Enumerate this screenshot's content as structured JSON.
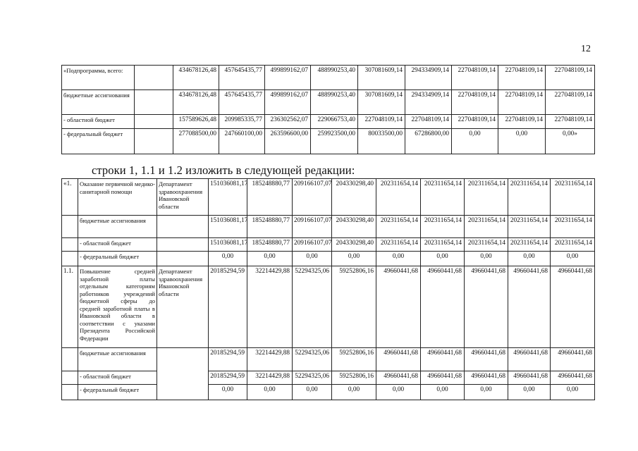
{
  "page_number": "12",
  "heading": "строки 1, 1.1 и 1.2 изложить в следующей редакции:",
  "table1": {
    "rows": [
      {
        "label": "«Подпрограмма, всего:",
        "values": [
          "434678126,48",
          "457645435,77",
          "499899162,07",
          "488990253,40",
          "307081609,14",
          "294334909,14",
          "227048109,14",
          "227048109,14",
          "227048109,14"
        ]
      },
      {
        "label": "бюджетные ассигнования",
        "values": [
          "434678126,48",
          "457645435,77",
          "499899162,07",
          "488990253,40",
          "307081609,14",
          "294334909,14",
          "227048109,14",
          "227048109,14",
          "227048109,14"
        ]
      },
      {
        "label": "- областной бюджет",
        "values": [
          "157589626,48",
          "209985335,77",
          "236302562,07",
          "229066753,40",
          "227048109,14",
          "227048109,14",
          "227048109,14",
          "227048109,14",
          "227048109,14"
        ]
      },
      {
        "label": "- федеральный бюджет",
        "values": [
          "277088500,00",
          "247660100,00",
          "263596600,00",
          "259923500,00",
          "80033500,00",
          "67286800,00",
          "0,00",
          "0,00",
          "0,00»"
        ]
      }
    ]
  },
  "table2": {
    "groups": [
      {
        "number": "«1.",
        "title": "Оказание первичной медико-санитарной помощи",
        "department": "Департамент здравоохранения Ивановской области",
        "values": [
          "151036081,17",
          "185248880,77",
          "209166107,07",
          "204330298,40",
          "202311654,14",
          "202311654,14",
          "202311654,14",
          "202311654,14",
          "202311654,14"
        ],
        "subrows": [
          {
            "label": "бюджетные ассигнования",
            "values": [
              "151036081,17",
              "185248880,77",
              "209166107,07",
              "204330298,40",
              "202311654,14",
              "202311654,14",
              "202311654,14",
              "202311654,14",
              "202311654,14"
            ]
          },
          {
            "label": "- областной бюджет",
            "values": [
              "151036081,17",
              "185248880,77",
              "209166107,07",
              "204330298,40",
              "202311654,14",
              "202311654,14",
              "202311654,14",
              "202311654,14",
              "202311654,14"
            ]
          },
          {
            "label": "- федеральный бюджет",
            "values": [
              "0,00",
              "0,00",
              "0,00",
              "0,00",
              "0,00",
              "0,00",
              "0,00",
              "0,00",
              "0,00"
            ]
          }
        ]
      },
      {
        "number": "1.1.",
        "title": "Повышение средней заработной платы отдельным категориям работников учреждений бюджетной сферы до средней заработной платы в Ивановской области в соответствии с указами Президента Российской Федерации",
        "department": "Департамент здравоохранения Ивановской области",
        "values": [
          "20185294,59",
          "32214429,88",
          "52294325,06",
          "59252806,16",
          "49660441,68",
          "49660441,68",
          "49660441,68",
          "49660441,68",
          "49660441,68"
        ],
        "subrows": [
          {
            "label": "бюджетные ассигнования",
            "values": [
              "20185294,59",
              "32214429,88",
              "52294325,06",
              "59252806,16",
              "49660441,68",
              "49660441,68",
              "49660441,68",
              "49660441,68",
              "49660441,68"
            ]
          },
          {
            "label": "- областной бюджет",
            "values": [
              "20185294,59",
              "32214429,88",
              "52294325,06",
              "59252806,16",
              "49660441,68",
              "49660441,68",
              "49660441,68",
              "49660441,68",
              "49660441,68"
            ]
          },
          {
            "label": "- федеральный бюджет",
            "values": [
              "0,00",
              "0,00",
              "0,00",
              "0,00",
              "0,00",
              "0,00",
              "0,00",
              "0,00",
              "0,00"
            ]
          }
        ]
      }
    ]
  }
}
